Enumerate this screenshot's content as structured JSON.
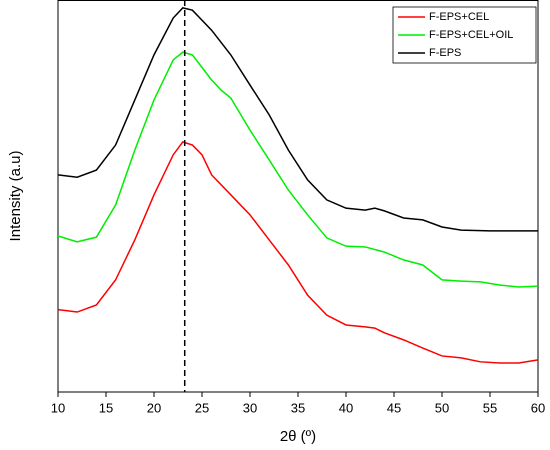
{
  "chart_data": {
    "type": "line",
    "xlabel": "2θ (º)",
    "ylabel": "Intensity (a.u)",
    "xlim": [
      10,
      60
    ],
    "xticks": [
      10,
      15,
      20,
      25,
      30,
      35,
      40,
      45,
      50,
      55,
      60
    ],
    "ylim": [
      0,
      100
    ],
    "reference_line": 23.2,
    "legend": "upper right",
    "series": [
      {
        "name": "F-EPS+CEL",
        "color": "#ff0000",
        "x": [
          10,
          12,
          14,
          16,
          18,
          20,
          22,
          23,
          24,
          25,
          26,
          28,
          30,
          32,
          34,
          36,
          38,
          40,
          42,
          43,
          44,
          46,
          48,
          50,
          52,
          54,
          56,
          58,
          60
        ],
        "values": [
          21.0,
          20.4,
          22.2,
          28.6,
          38.8,
          50.3,
          60.5,
          63.8,
          63.0,
          60.5,
          55.4,
          50.3,
          45.2,
          38.8,
          32.4,
          24.7,
          19.6,
          17.1,
          16.6,
          16.3,
          15.1,
          13.3,
          11.2,
          9.2,
          8.7,
          7.7,
          7.4,
          7.4,
          8.2
        ]
      },
      {
        "name": "F-EPS+CEL+OIL",
        "color": "#00ee00",
        "x": [
          10,
          12,
          14,
          16,
          18,
          20,
          22,
          23,
          24,
          26,
          27,
          28,
          30,
          32,
          34,
          36,
          38,
          40,
          42,
          44,
          46,
          48,
          50,
          52,
          54,
          56,
          58,
          60
        ],
        "values": [
          39.8,
          38.3,
          39.5,
          47.7,
          61.7,
          74.5,
          84.7,
          86.7,
          86.0,
          79.6,
          77.0,
          75.0,
          66.8,
          59.2,
          51.5,
          45.2,
          39.3,
          37.2,
          37.0,
          35.7,
          33.7,
          32.4,
          28.6,
          28.3,
          28.1,
          27.3,
          26.8,
          27.0
        ]
      },
      {
        "name": "F-EPS",
        "color": "#000000",
        "x": [
          10,
          12,
          14,
          16,
          18,
          20,
          22,
          23,
          24,
          26,
          28,
          30,
          32,
          34,
          36,
          38,
          40,
          42,
          43,
          44,
          46,
          48,
          50,
          52,
          55,
          60
        ],
        "values": [
          55.4,
          54.8,
          56.6,
          63.0,
          74.5,
          86.0,
          95.4,
          98.0,
          97.4,
          92.3,
          86.0,
          78.3,
          70.7,
          61.7,
          54.1,
          49.0,
          46.9,
          46.4,
          46.9,
          46.2,
          44.4,
          43.9,
          42.1,
          41.3,
          41.1,
          41.1
        ]
      }
    ]
  }
}
